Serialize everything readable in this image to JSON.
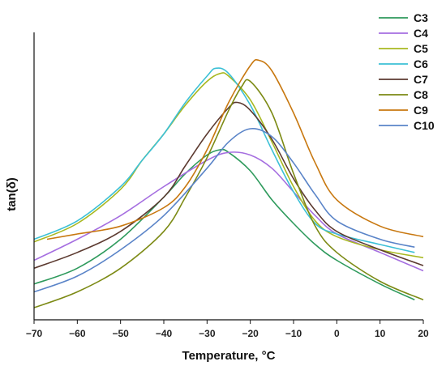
{
  "chart_data": {
    "type": "line",
    "title": "",
    "xlabel": "Temperature, °C",
    "ylabel": "tan(δ)",
    "xlim": [
      -70,
      20
    ],
    "ylim": [
      0,
      100
    ],
    "y_tick_labels_shown": false,
    "xticks": [
      -70,
      -60,
      -50,
      -40,
      -30,
      -20,
      -10,
      0,
      10,
      20
    ],
    "grid": false,
    "legend_position": "top-right",
    "series": [
      {
        "name": "C3",
        "color": "#2e9a5c",
        "x": [
          -70,
          -60,
          -50,
          -40,
          -35,
          -30,
          -27,
          -25,
          -20,
          -15,
          -10,
          -5,
          0,
          10,
          18
        ],
        "y": [
          9,
          15,
          26,
          42,
          51,
          58,
          60,
          59,
          52,
          41,
          32,
          24,
          18,
          9,
          3
        ]
      },
      {
        "name": "C4",
        "color": "#a56ee0",
        "x": [
          -70,
          -60,
          -50,
          -40,
          -30,
          -25,
          -20,
          -15,
          -10,
          -5,
          0,
          10,
          20
        ],
        "y": [
          18,
          26,
          35,
          46,
          56,
          59,
          58,
          53,
          44,
          35,
          28,
          21,
          14
        ]
      },
      {
        "name": "C5",
        "color": "#a8b820",
        "x": [
          -70,
          -60,
          -50,
          -45,
          -40,
          -35,
          -30,
          -27,
          -25,
          -20,
          -15,
          -10,
          -5,
          0,
          10,
          20
        ],
        "y": [
          25,
          32,
          45,
          56,
          66,
          77,
          86,
          89,
          88,
          79,
          63,
          46,
          33,
          27,
          22,
          19
        ]
      },
      {
        "name": "C6",
        "color": "#3cc0d6",
        "x": [
          -70,
          -60,
          -50,
          -45,
          -40,
          -35,
          -30,
          -28,
          -25,
          -20,
          -15,
          -10,
          -5,
          0,
          10,
          18
        ],
        "y": [
          26,
          33,
          46,
          56,
          66,
          78,
          88,
          91,
          89,
          77,
          60,
          44,
          32,
          28,
          24,
          21
        ]
      },
      {
        "name": "C7",
        "color": "#5c3a30",
        "x": [
          -70,
          -60,
          -50,
          -40,
          -35,
          -30,
          -25,
          -23,
          -20,
          -15,
          -10,
          -5,
          0,
          10,
          20
        ],
        "y": [
          15,
          21,
          29,
          42,
          54,
          66,
          76,
          78,
          75,
          64,
          49,
          37,
          29,
          22,
          16
        ]
      },
      {
        "name": "C8",
        "color": "#7c8a14",
        "x": [
          -70,
          -60,
          -50,
          -40,
          -35,
          -30,
          -25,
          -22,
          -20,
          -15,
          -10,
          -5,
          0,
          10,
          20
        ],
        "y": [
          0,
          6,
          15,
          29,
          42,
          57,
          75,
          84,
          86,
          74,
          51,
          31,
          21,
          10,
          3
        ]
      },
      {
        "name": "C9",
        "color": "#c87810",
        "x": [
          -67,
          -60,
          -50,
          -40,
          -35,
          -30,
          -25,
          -20,
          -18,
          -15,
          -10,
          -5,
          0,
          10,
          20
        ],
        "y": [
          26,
          28,
          31,
          38,
          46,
          60,
          78,
          92,
          94,
          90,
          74,
          55,
          41,
          31,
          27
        ]
      },
      {
        "name": "C10",
        "color": "#5a84c8",
        "x": [
          -70,
          -60,
          -50,
          -40,
          -30,
          -25,
          -20,
          -15,
          -10,
          -5,
          0,
          10,
          18
        ],
        "y": [
          6,
          12,
          22,
          35,
          53,
          63,
          68,
          65,
          55,
          43,
          33,
          26,
          23
        ]
      }
    ]
  }
}
